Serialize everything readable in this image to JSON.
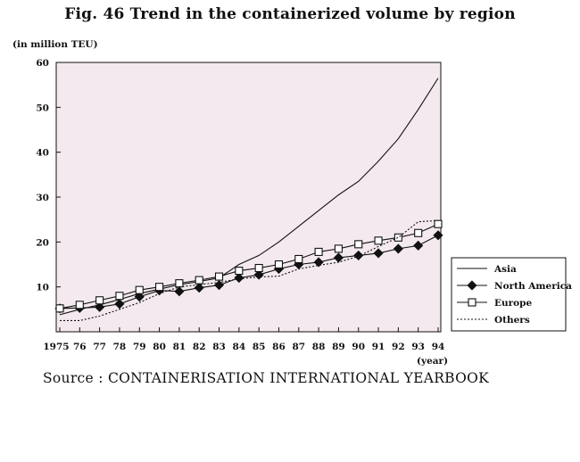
{
  "title": "Fig. 46 Trend in the containerized volume by region",
  "source": "Source : CONTAINERISATION INTERNATIONAL YEARBOOK",
  "colors": {
    "plot_bg": "#f3e9ef",
    "line": "#111111"
  },
  "chart_data": {
    "type": "line",
    "ylabel": "(in million TEU)",
    "xlabel": "(year)",
    "ylim": [
      0,
      60
    ],
    "yticks": [
      10,
      20,
      30,
      40,
      50,
      60
    ],
    "x": [
      "1975",
      "76",
      "77",
      "78",
      "79",
      "80",
      "81",
      "82",
      "83",
      "84",
      "85",
      "86",
      "87",
      "88",
      "89",
      "90",
      "91",
      "92",
      "93",
      "94"
    ],
    "grid": false,
    "legend_position": "right",
    "series": [
      {
        "name": "Asia",
        "marker": "none",
        "dash": "solid",
        "values": [
          3.8,
          5.0,
          6.0,
          7.2,
          8.5,
          9.5,
          10.5,
          11.2,
          12.0,
          15.0,
          17.0,
          20.0,
          23.5,
          27.0,
          30.5,
          33.5,
          38.0,
          43.0,
          49.5,
          56.5
        ]
      },
      {
        "name": "North America",
        "marker": "diamond",
        "dash": "solid",
        "values": [
          5.2,
          5.3,
          5.5,
          6.2,
          7.8,
          9.2,
          9.0,
          9.8,
          10.4,
          12.0,
          12.7,
          14.0,
          15.0,
          15.5,
          16.5,
          17.0,
          17.5,
          18.5,
          19.2,
          21.5
        ]
      },
      {
        "name": "Europe",
        "marker": "square",
        "dash": "solid",
        "values": [
          5.2,
          6.0,
          7.0,
          8.0,
          9.3,
          10.0,
          10.8,
          11.5,
          12.3,
          13.6,
          14.2,
          15.0,
          16.2,
          17.8,
          18.5,
          19.5,
          20.3,
          21.0,
          22.0,
          24.0
        ]
      },
      {
        "name": "Others",
        "marker": "none",
        "dash": "dotted",
        "values": [
          2.5,
          2.5,
          3.5,
          5.0,
          6.5,
          8.5,
          10.0,
          10.5,
          11.0,
          11.8,
          12.2,
          12.4,
          14.0,
          14.8,
          15.5,
          16.8,
          19.0,
          21.0,
          24.5,
          24.8
        ]
      }
    ]
  }
}
